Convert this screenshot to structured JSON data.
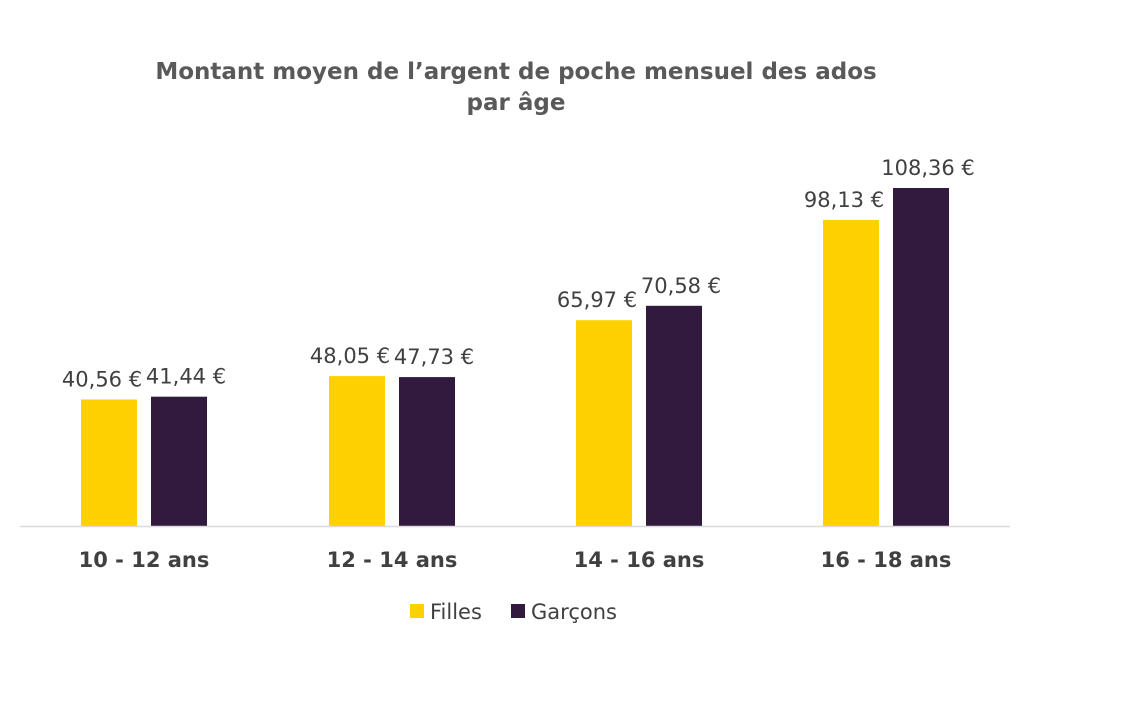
{
  "chart_data": {
    "type": "bar",
    "title": "Montant moyen de l’argent de poche mensuel des ados",
    "title_line2": "par âge",
    "xlabel": "",
    "ylabel": "",
    "ylim": [
      0,
      108.36
    ],
    "grid": false,
    "legend_position": "bottom",
    "categories": [
      "10 - 12 ans",
      "12 - 14 ans",
      "14 - 16 ans",
      "16 - 18 ans"
    ],
    "series": [
      {
        "name": "Filles",
        "color": "#FFD100",
        "values": [
          40.56,
          48.05,
          65.97,
          98.13
        ],
        "labels": [
          "40,56 €",
          "48,05 €",
          "65,97 €",
          "98,13 €"
        ]
      },
      {
        "name": "Garçons",
        "color": "#321A3E",
        "values": [
          41.44,
          47.73,
          70.58,
          108.36
        ],
        "labels": [
          "41,44 €",
          "47,73 €",
          "70,58 €",
          "108,36 €"
        ]
      }
    ]
  }
}
